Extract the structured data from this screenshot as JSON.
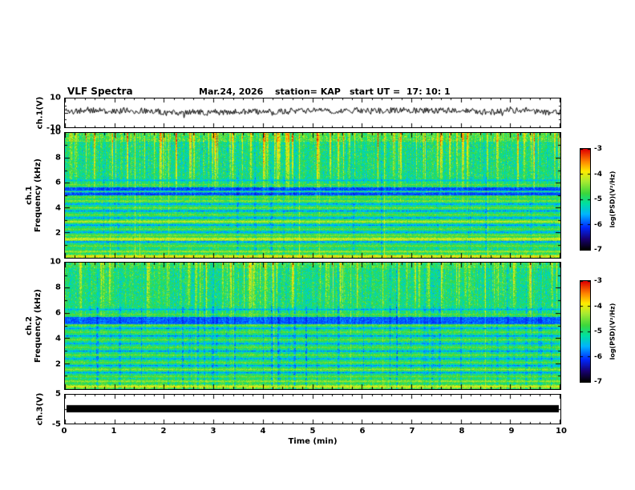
{
  "header": {
    "title": "VLF Spectra",
    "date": "Mar.24, 2026",
    "station": "station= KAP",
    "start_ut": "start UT =  17: 10: 1"
  },
  "axes": {
    "x": {
      "label": "Time (min)",
      "min": 0,
      "max": 10,
      "major_ticks": [
        0,
        1,
        2,
        3,
        4,
        5,
        6,
        7,
        8,
        9,
        10
      ],
      "minor_step": 0.2
    }
  },
  "colorbar": {
    "label": "log(PSD)(V²/Hz)",
    "ticks": [
      -3,
      -4,
      -5,
      -6,
      -7
    ],
    "max": -3,
    "min": -7
  },
  "colors": {
    "background": "#ffffff",
    "frame": "#000000",
    "trace": "#000000",
    "colormap_high": "#e10000",
    "colormap_mid": "#3cd73c",
    "colormap_low": "#000000"
  },
  "chart_data": [
    {
      "id": "ch1_waveform",
      "type": "line",
      "ylabel": "ch.1(V)",
      "ylim": [
        -10,
        10
      ],
      "ytick_labels": [
        10,
        -10
      ],
      "xlim": [
        0,
        10
      ],
      "signal": {
        "seed": 11,
        "mean_v": 1.2,
        "fast_noise": 2.1,
        "min_v": -6.5,
        "max_v": 8.5,
        "character": "continuous broadband noise trace, mean near +1 V, excursions roughly -5 to +7 V"
      }
    },
    {
      "id": "ch1_spectrogram",
      "type": "heatmap",
      "ylabel_line1": "ch.1",
      "ylabel_line2": "Frequency (kHz)",
      "ylim": [
        0,
        10
      ],
      "ytick_labels": [
        10,
        8,
        6,
        4,
        2
      ],
      "xlim": [
        0,
        10
      ],
      "zlim": [
        -7,
        -3
      ],
      "texture": {
        "seed": 101,
        "base_level": -5.05,
        "noise": 0.42,
        "vertical_streaks": {
          "density": 0.13,
          "strength": 1.5,
          "neg_density": 0.05,
          "neg_strength": 0.55,
          "full_density": 0.015,
          "full_strength": 1.1
        },
        "dark_band": {
          "f_low": 5.0,
          "f_high": 5.62,
          "level": -6.45
        },
        "top_hot": {
          "f_low": 9.3,
          "boost": 0.5
        },
        "horizontal_lines": [
          {
            "f": 0.12,
            "v": -3.6,
            "w": 0.09
          },
          {
            "f": 0.5,
            "v": -4.15,
            "w": 0.07
          },
          {
            "f": 0.95,
            "v": -4.4,
            "w": 0.06
          },
          {
            "f": 1.28,
            "v": -5.9,
            "w": 0.06
          },
          {
            "f": 1.5,
            "v": -3.8,
            "w": 0.1
          },
          {
            "f": 1.8,
            "v": -4.35,
            "w": 0.06
          },
          {
            "f": 2.05,
            "v": -5.9,
            "w": 0.05
          },
          {
            "f": 2.3,
            "v": -4.45,
            "w": 0.05
          },
          {
            "f": 2.62,
            "v": -5.95,
            "w": 0.05
          },
          {
            "f": 2.9,
            "v": -4.0,
            "w": 0.08
          },
          {
            "f": 3.2,
            "v": -5.9,
            "w": 0.05
          },
          {
            "f": 3.45,
            "v": -4.4,
            "w": 0.05
          },
          {
            "f": 3.75,
            "v": -5.95,
            "w": 0.05
          },
          {
            "f": 4.0,
            "v": -4.35,
            "w": 0.05
          },
          {
            "f": 4.3,
            "v": -5.9,
            "w": 0.05
          },
          {
            "f": 4.55,
            "v": -4.3,
            "w": 0.06
          },
          {
            "f": 4.85,
            "v": -4.5,
            "w": 0.05
          },
          {
            "f": 5.3,
            "v": -4.45,
            "w": 0.04
          },
          {
            "f": 5.85,
            "v": -4.5,
            "w": 0.05
          },
          {
            "f": 6.2,
            "v": -5.7,
            "w": 0.05
          }
        ]
      }
    },
    {
      "id": "ch2_spectrogram",
      "type": "heatmap",
      "ylabel_line1": "ch.2",
      "ylabel_line2": "Frequency (kHz)",
      "ylim": [
        0,
        10
      ],
      "ytick_labels": [
        10,
        8,
        6,
        4,
        2
      ],
      "xlim": [
        0,
        10
      ],
      "zlim": [
        -7,
        -3
      ],
      "texture": {
        "seed": 202,
        "base_level": -5.0,
        "noise": 0.4,
        "vertical_streaks": {
          "density": 0.1,
          "strength": 1.15,
          "neg_density": 0.11,
          "neg_strength": 0.75,
          "full_density": 0.008,
          "full_strength": 0.9
        },
        "dark_band": {
          "f_low": 5.15,
          "f_high": 5.68,
          "level": -6.35
        },
        "top_hot": {
          "f_low": 9.55,
          "boost": 0.3
        },
        "horizontal_lines": [
          {
            "f": 0.2,
            "v": -3.8,
            "w": 0.1
          },
          {
            "f": 0.62,
            "v": -4.2,
            "w": 0.07
          },
          {
            "f": 1.0,
            "v": -4.45,
            "w": 0.06
          },
          {
            "f": 1.3,
            "v": -5.9,
            "w": 0.05
          },
          {
            "f": 1.55,
            "v": -4.25,
            "w": 0.07
          },
          {
            "f": 1.85,
            "v": -5.95,
            "w": 0.05
          },
          {
            "f": 2.1,
            "v": -4.45,
            "w": 0.05
          },
          {
            "f": 2.4,
            "v": -5.9,
            "w": 0.05
          },
          {
            "f": 2.7,
            "v": -4.4,
            "w": 0.05
          },
          {
            "f": 3.0,
            "v": -5.95,
            "w": 0.05
          },
          {
            "f": 3.3,
            "v": -4.45,
            "w": 0.05
          },
          {
            "f": 3.6,
            "v": -5.9,
            "w": 0.05
          },
          {
            "f": 3.9,
            "v": -4.4,
            "w": 0.05
          },
          {
            "f": 4.2,
            "v": -5.95,
            "w": 0.05
          },
          {
            "f": 4.5,
            "v": -4.45,
            "w": 0.05
          },
          {
            "f": 4.8,
            "v": -5.9,
            "w": 0.05
          },
          {
            "f": 5.05,
            "v": -4.4,
            "w": 0.05
          },
          {
            "f": 5.9,
            "v": -4.5,
            "w": 0.05
          },
          {
            "f": 6.3,
            "v": -5.8,
            "w": 0.05
          }
        ]
      }
    },
    {
      "id": "ch3_trace",
      "type": "line",
      "ylabel": "ch.3(V)",
      "ylim": [
        -5,
        5
      ],
      "ytick_labels": [
        5,
        -5
      ],
      "xlim": [
        0,
        10
      ],
      "signal": {
        "type": "saturated_flat_band",
        "center_v": 0.1,
        "half_width_v": 1.25,
        "character": "flat saturated black band spanning the full record"
      }
    }
  ]
}
